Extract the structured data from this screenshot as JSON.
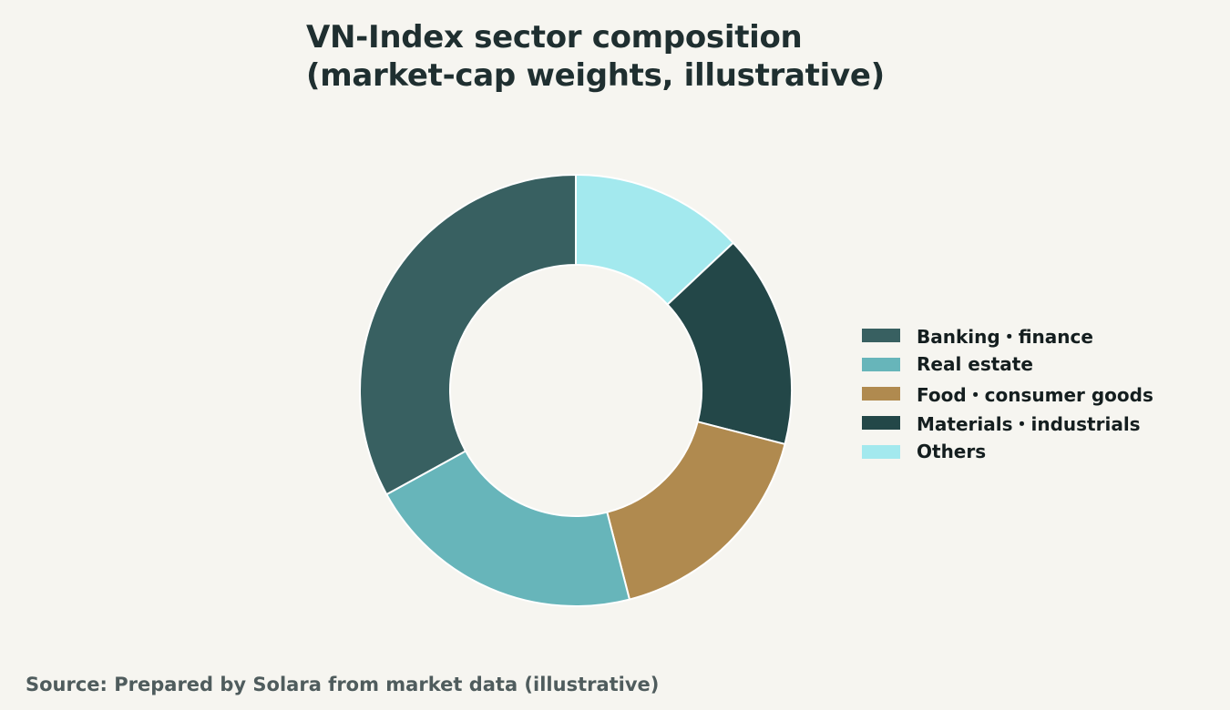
{
  "chart_data": {
    "type": "pie",
    "title_lines": [
      "VN-Index sector composition",
      "(market-cap weights, illustrative)"
    ],
    "donut": true,
    "start": "top",
    "direction": "clockwise",
    "legend_position": "right",
    "slices": [
      {
        "label": "Others",
        "value": 13,
        "color": "#a3e9ee"
      },
      {
        "label": "Materials・industrials",
        "value": 16,
        "color": "#234748"
      },
      {
        "label": "Food・consumer goods",
        "value": 17,
        "color": "#b08a4f"
      },
      {
        "label": "Real estate",
        "value": 21,
        "color": "#67b5ba"
      },
      {
        "label": "Banking・finance",
        "value": 33,
        "color": "#386061"
      }
    ],
    "legend": [
      {
        "label": "Banking・finance",
        "color": "#386061"
      },
      {
        "label": "Real estate",
        "color": "#67b5ba"
      },
      {
        "label": "Food・consumer goods",
        "color": "#b08a4f"
      },
      {
        "label": "Materials・industrials",
        "color": "#234748"
      },
      {
        "label": "Others",
        "color": "#a3e9ee"
      }
    ]
  },
  "source_note": "Source: Prepared by Solara from market data (illustrative)"
}
